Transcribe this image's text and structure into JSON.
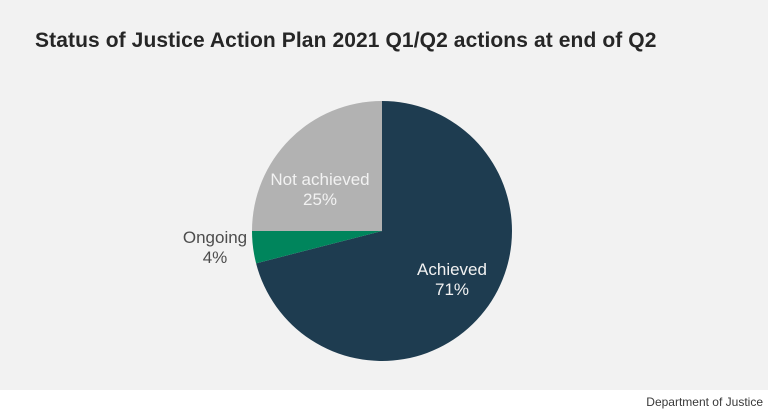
{
  "page": {
    "title": "Status of Justice Action Plan 2021 Q1/Q2 actions at end of Q2",
    "source_attribution": "Department of Justice"
  },
  "colors": {
    "chart_background": "#f2f2f2",
    "footer_background": "#ffffff",
    "title_text": "#262626",
    "inside_label_text": "#f2f2f2",
    "outside_label_text": "#4d4d4d",
    "footer_text": "#383838",
    "achieved_slice": "#1e3c50",
    "ongoing_slice": "#00855c",
    "not_achieved_slice": "#b2b2b2"
  },
  "chart_data": {
    "type": "pie",
    "title": "Status of Justice Action Plan 2021 Q1/Q2 actions at end of Q2",
    "start_angle_deg_from_top_clockwise": 0,
    "legend_position": "none",
    "labels_on_slices": true,
    "slices": [
      {
        "label": "Achieved",
        "value": 71,
        "pct_label": "71%",
        "color": "#1e3c50",
        "label_placement": "inside"
      },
      {
        "label": "Ongoing",
        "value": 4,
        "pct_label": "4%",
        "color": "#00855c",
        "label_placement": "outside"
      },
      {
        "label": "Not achieved",
        "value": 25,
        "pct_label": "25%",
        "color": "#b2b2b2",
        "label_placement": "inside"
      }
    ],
    "source": "Department of Justice"
  }
}
